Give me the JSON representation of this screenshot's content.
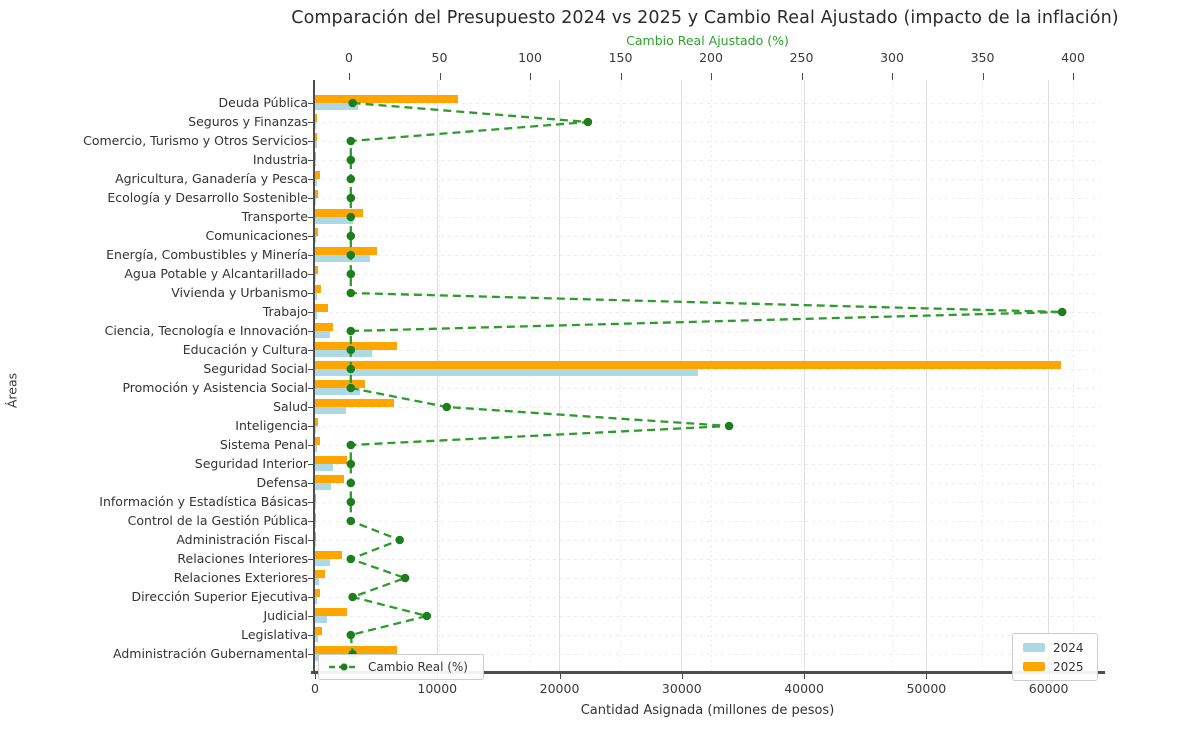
{
  "title": "Comparación del Presupuesto 2024 vs 2025 y Cambio Real Ajustado (impacto de la inflación)",
  "colors": {
    "bar_2024": "#ADD8E6",
    "bar_2025": "#FFA500",
    "line": "#2e9b2e",
    "marker": "#1e7e1e",
    "top_axis_text": "#2ca02c"
  },
  "chart_data": {
    "type": "bar",
    "orientation": "horizontal",
    "title": "Comparación del Presupuesto 2024 vs 2025 y Cambio Real Ajustado (impacto de la inflación)",
    "ylabel": "Áreas",
    "grid": true,
    "legend_position": [
      "lower left inside plot (line)",
      "lower right inside plot (bars)"
    ],
    "categories": [
      "Deuda Pública",
      "Seguros y Finanzas",
      "Comercio, Turismo y Otros Servicios",
      "Industria",
      "Agricultura, Ganadería y Pesca",
      "Ecología y Desarrollo Sostenible",
      "Transporte",
      "Comunicaciones",
      "Energía, Combustibles y Minería",
      "Agua Potable y Alcantarillado",
      "Vivienda y Urbanismo",
      "Trabajo",
      "Ciencia, Tecnología e Innovación",
      "Educación y Cultura",
      "Seguridad Social",
      "Promoción y Asistencia Social",
      "Salud",
      "Inteligencia",
      "Sistema Penal",
      "Seguridad Interior",
      "Defensa",
      "Información y Estadística Básicas",
      "Control de la Gestión Pública",
      "Administración Fiscal",
      "Relaciones Interiores",
      "Relaciones Exteriores",
      "Dirección Superior Ejecutiva",
      "Judicial",
      "Legislativa",
      "Administración Gubernamental"
    ],
    "series": [
      {
        "name": "2024",
        "color": "#ADD8E6",
        "values": [
          3500,
          100,
          150,
          80,
          150,
          100,
          3100,
          100,
          4500,
          100,
          150,
          150,
          1200,
          4700,
          31300,
          3700,
          2500,
          100,
          150,
          1500,
          1300,
          50,
          50,
          80,
          1200,
          300,
          150,
          1000,
          250,
          2000
        ]
      },
      {
        "name": "2025",
        "color": "#FFA500",
        "values": [
          11700,
          150,
          200,
          100,
          400,
          250,
          3900,
          250,
          5100,
          250,
          500,
          1100,
          1500,
          6700,
          61000,
          4100,
          6500,
          250,
          400,
          2600,
          2400,
          80,
          80,
          120,
          2200,
          800,
          400,
          2600,
          600,
          6700
        ]
      }
    ],
    "line_series": {
      "name": "Cambio Real (%)",
      "color": "#2e9b2e",
      "style": "dashed with circle markers",
      "values": [
        2,
        132,
        1,
        1,
        1,
        1,
        1,
        1,
        1,
        1,
        1,
        394,
        1,
        1,
        1,
        1,
        54,
        210,
        1,
        1,
        1,
        1,
        1,
        28,
        1,
        31,
        2,
        43,
        1,
        2
      ]
    },
    "x_bottom": {
      "label": "Cantidad Asignada (millones de pesos)",
      "ticks": [
        0,
        10000,
        20000,
        30000,
        40000,
        50000,
        60000
      ],
      "min": 0,
      "max": 64200
    },
    "x_top": {
      "label": "Cambio Real Ajustado (%)",
      "ticks": [
        0,
        50,
        100,
        150,
        200,
        250,
        300,
        350,
        400
      ],
      "min": -18.8,
      "max": 415
    }
  }
}
